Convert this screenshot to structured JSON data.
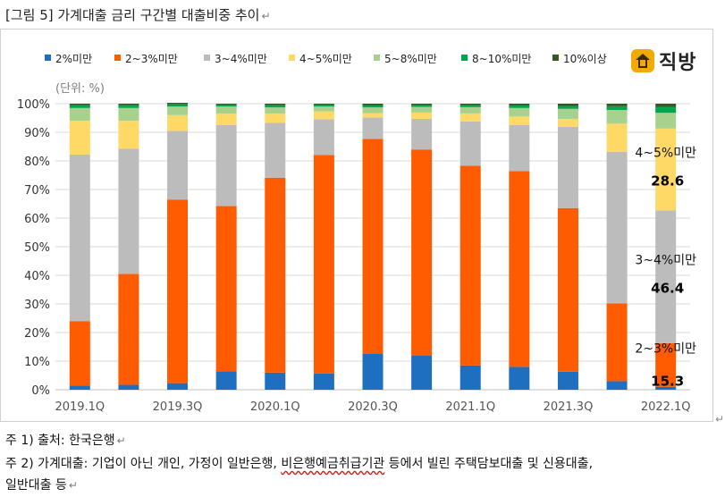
{
  "figure_title": "[그림 5] 가계대출 금리 구간별 대출비중 추이",
  "logo_text": "직방",
  "notes": {
    "source": "주 1) 출처: 한국은행",
    "definition_pre": "주 2) 가계대출: 기업이 아닌 개인, 가정이 일반은행, ",
    "definition_underlined": "비은행예금취급기관",
    "definition_post": " 등에서 빌린 주택담보대출 및 신용대출,",
    "definition_line2": "일반대출 등"
  },
  "chart_data": {
    "type": "bar",
    "stacked": true,
    "unit_label": "(단위: %)",
    "ylim": [
      0,
      100
    ],
    "yticks": [
      "0%",
      "10%",
      "20%",
      "30%",
      "40%",
      "50%",
      "60%",
      "70%",
      "80%",
      "90%",
      "100%"
    ],
    "xtick_labels": [
      "2019.1Q",
      "2019.3Q",
      "2020.1Q",
      "2020.3Q",
      "2021.1Q",
      "2021.3Q",
      "2022.1Q"
    ],
    "categories": [
      "2019.1Q",
      "2019.2Q",
      "2019.3Q",
      "2019.4Q",
      "2020.1Q",
      "2020.2Q",
      "2020.3Q",
      "2020.4Q",
      "2021.1Q",
      "2021.2Q",
      "2021.3Q",
      "2021.4Q",
      "2022.1Q"
    ],
    "legend_position": "top",
    "grid": true,
    "series": [
      {
        "name": "2%미만",
        "color": "#1f6fc0",
        "values": [
          1.5,
          1.7,
          2.3,
          6.5,
          6.0,
          5.7,
          12.5,
          12.0,
          8.5,
          8.0,
          6.3,
          3.0,
          1.0
        ]
      },
      {
        "name": "2~3%미만",
        "color": "#ff5b00",
        "values": [
          22.5,
          38.8,
          64.2,
          57.7,
          68.1,
          76.4,
          75.2,
          72.0,
          69.8,
          68.4,
          57.2,
          27.2,
          15.3
        ]
      },
      {
        "name": "3~4%미만",
        "color": "#bcbcbc",
        "values": [
          58.2,
          43.8,
          24.0,
          28.3,
          19.2,
          12.5,
          7.5,
          10.7,
          15.5,
          16.1,
          28.4,
          53.0,
          46.4
        ]
      },
      {
        "name": "4~5%미만",
        "color": "#ffd966",
        "values": [
          11.8,
          9.7,
          5.5,
          4.0,
          3.2,
          2.7,
          1.5,
          2.2,
          2.8,
          3.0,
          2.8,
          9.8,
          28.6
        ]
      },
      {
        "name": "5~8%미만",
        "color": "#a9d18e",
        "values": [
          4.5,
          4.5,
          3.0,
          2.5,
          2.2,
          1.7,
          2.0,
          2.0,
          2.2,
          3.0,
          3.5,
          4.8,
          5.5
        ]
      },
      {
        "name": "8~10%미만",
        "color": "#00a550",
        "values": [
          1.0,
          1.0,
          0.8,
          0.7,
          0.8,
          0.7,
          0.7,
          0.6,
          0.7,
          0.9,
          1.0,
          1.3,
          2.0
        ]
      },
      {
        "name": "10%이상",
        "color": "#385723",
        "values": [
          0.5,
          0.5,
          0.5,
          0.3,
          0.5,
          0.3,
          0.6,
          0.5,
          0.5,
          0.6,
          0.8,
          0.9,
          1.2
        ]
      }
    ],
    "annotations": [
      {
        "label": "4~5%미만",
        "value": "28.6"
      },
      {
        "label": "3~4%미만",
        "value": "46.4"
      },
      {
        "label": "2~3%미만",
        "value": "15.3"
      }
    ]
  }
}
